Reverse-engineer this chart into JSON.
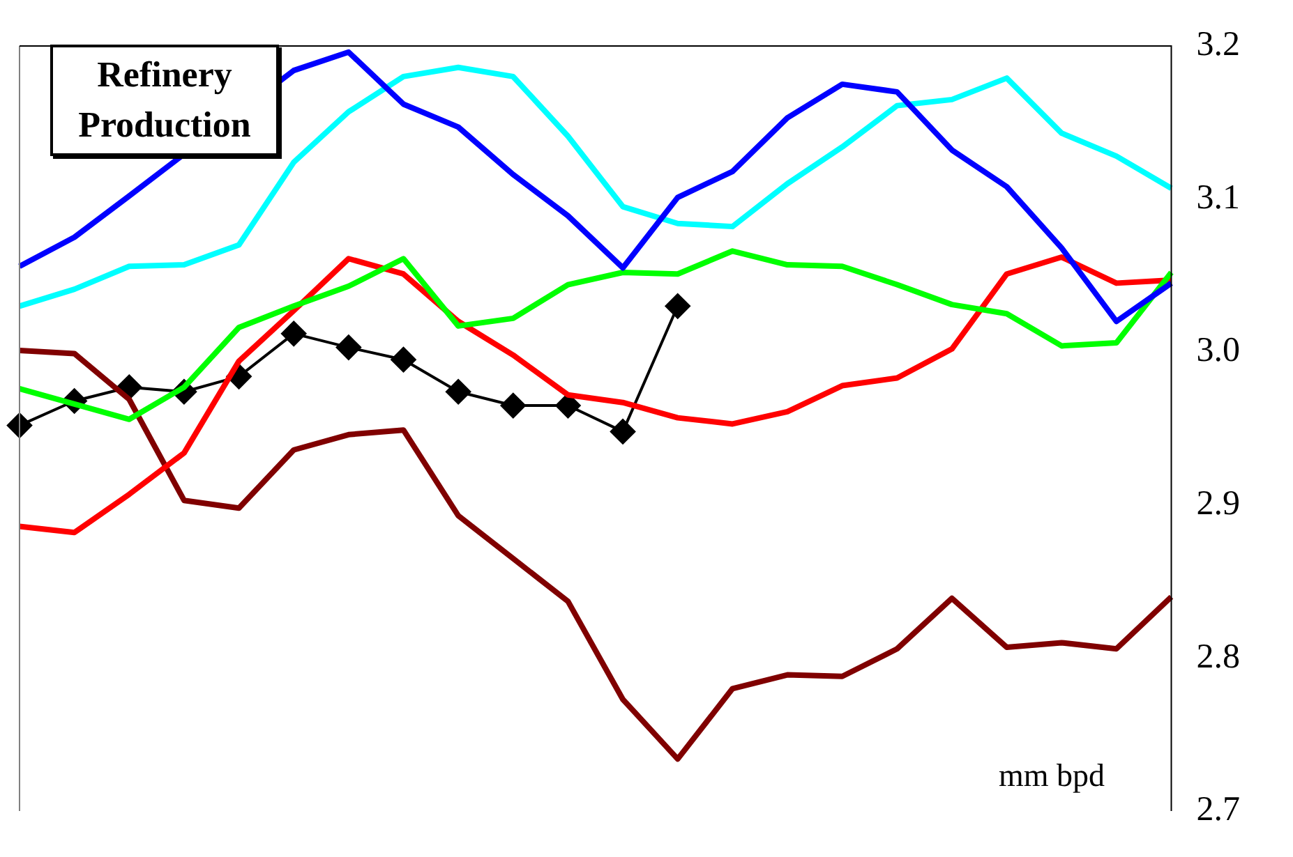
{
  "chart_data": {
    "type": "line",
    "title": "Refinery Production",
    "annotations": [
      "mm bpd"
    ],
    "categories": [
      null,
      null,
      null,
      null,
      null,
      null,
      null,
      null,
      null,
      null,
      null,
      null,
      null,
      null,
      null,
      null,
      null,
      null,
      null,
      null,
      null,
      null
    ],
    "ylim": [
      2.7,
      3.2
    ],
    "yticks": [
      2.7,
      2.8,
      2.9,
      {
        "value": 3,
        "label": "3.0"
      },
      3.1,
      3.2
    ],
    "grid": false,
    "legend": false,
    "tick_labels": "y",
    "line_style": "solid",
    "series": [
      {
        "color": "#0000ff",
        "marker": "none",
        "values": [
          3.056,
          3.075,
          3.102,
          null,
          null,
          3.184,
          3.196,
          3.162,
          3.147,
          3.116,
          3.089,
          3.055,
          3.101,
          3.118,
          3.153,
          3.175,
          3.17,
          3.132,
          3.108,
          3.068,
          3.02,
          3.045
        ]
      },
      {
        "color": "#00ffff",
        "marker": "none",
        "values": [
          3.03,
          3.041,
          3.056,
          3.057,
          3.07,
          3.124,
          3.157,
          3.18,
          3.186,
          3.18,
          3.141,
          3.095,
          3.084,
          3.082,
          3.11,
          3.134,
          3.161,
          3.165,
          3.179,
          3.143,
          3.128,
          3.107
        ]
      },
      {
        "color": "#00ff00",
        "marker": "none",
        "values": [
          2.976,
          2.966,
          2.956,
          2.977,
          3.016,
          3.03,
          3.043,
          3.061,
          3.017,
          3.022,
          3.044,
          3.052,
          3.051,
          3.066,
          3.057,
          3.056,
          3.044,
          3.031,
          3.025,
          3.004,
          3.006,
          3.052
        ]
      },
      {
        "color": "#ff0000",
        "marker": "none",
        "values": [
          2.886,
          2.882,
          2.907,
          2.934,
          2.994,
          3.027,
          3.061,
          3.051,
          3.02,
          2.998,
          2.972,
          2.967,
          2.957,
          2.953,
          2.961,
          2.978,
          2.983,
          3.002,
          3.051,
          3.062,
          3.045,
          3.047
        ]
      },
      {
        "color": "#800000",
        "marker": "none",
        "values": [
          3.001,
          2.999,
          2.969,
          2.903,
          2.898,
          2.936,
          2.946,
          2.949,
          2.893,
          2.865,
          2.837,
          2.773,
          2.734,
          2.78,
          2.789,
          2.788,
          2.806,
          2.839,
          2.807,
          2.81,
          2.806,
          2.84
        ]
      },
      {
        "color": "#000000",
        "marker": "diamond",
        "values": [
          2.952,
          2.968,
          2.977,
          2.974,
          2.984,
          3.012,
          3.003,
          2.995,
          2.974,
          2.965,
          2.965,
          2.948,
          3.03,
          null,
          null,
          null,
          null,
          null,
          null,
          null,
          null,
          null
        ]
      }
    ]
  }
}
